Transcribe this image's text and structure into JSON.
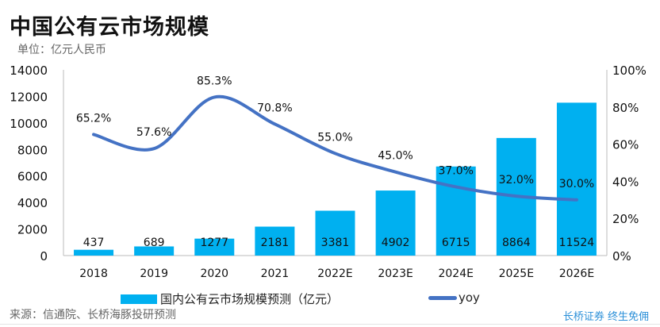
{
  "title": "中国公有云市场规模",
  "unit": "单位：亿元人民币",
  "source": "来源：信通院、长桥海豚投研预测",
  "brand": "长桥证券 终生免佣",
  "colors": {
    "bar": "#00b0f0",
    "line": "#4472c4"
  },
  "chart_data": {
    "type": "bar+line",
    "categories": [
      "2018",
      "2019",
      "2020",
      "2021",
      "2022E",
      "2023E",
      "2024E",
      "2025E",
      "2026E"
    ],
    "series": [
      {
        "name": "国内公有云市场规模预测（亿元）",
        "type": "bar",
        "axis": "left",
        "values": [
          437,
          689,
          1277,
          2181,
          3381,
          4902,
          6715,
          8864,
          11524
        ]
      },
      {
        "name": "yoy",
        "type": "line",
        "axis": "right",
        "values": [
          65.2,
          57.6,
          85.3,
          70.8,
          55.0,
          45.0,
          37.0,
          32.0,
          30.0
        ]
      }
    ],
    "value_labels": [
      "437",
      "689",
      "1277",
      "2181",
      "3381",
      "4902",
      "6715",
      "8864",
      "11524"
    ],
    "yoy_labels": [
      "65.2%",
      "57.6%",
      "85.3%",
      "70.8%",
      "55.0%",
      "45.0%",
      "37.0%",
      "32.0%",
      "30.0%"
    ],
    "left_axis": {
      "ylim": [
        0,
        14000
      ],
      "ticks": [
        "0",
        "2000",
        "4000",
        "6000",
        "8000",
        "10000",
        "12000",
        "14000"
      ]
    },
    "right_axis": {
      "ylim": [
        0,
        100
      ],
      "ticks": [
        "0%",
        "20%",
        "40%",
        "60%",
        "80%",
        "100%"
      ]
    },
    "grid": false,
    "legend": "bottom"
  }
}
